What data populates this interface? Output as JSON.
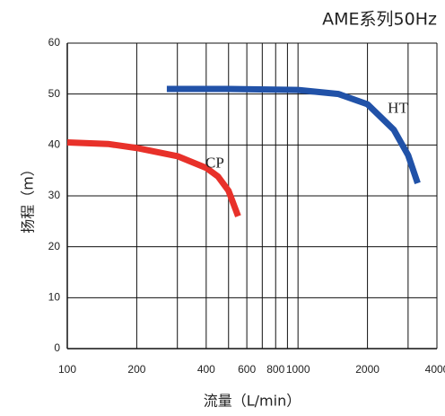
{
  "chart_data": {
    "type": "line",
    "title": "AME系列50Hz",
    "x_label": "流量（L/min）",
    "y_label": "扬程（m）",
    "log_x": true,
    "grid": true,
    "xlim": [
      100,
      4000
    ],
    "ylim": [
      0,
      60
    ],
    "xticks": [
      100,
      200,
      400,
      600,
      800,
      1000,
      2000,
      4000
    ],
    "x_minor_grid": [
      300,
      500,
      700,
      900,
      3000
    ],
    "yticks": [
      0,
      10,
      20,
      30,
      40,
      50,
      60
    ],
    "series": [
      {
        "name": "CP",
        "color": "#e8312a",
        "x": [
          100,
          150,
          200,
          300,
          400,
          450,
          500,
          550
        ],
        "values": [
          40.5,
          40.2,
          39.4,
          37.8,
          35.5,
          33.8,
          31,
          26
        ]
      },
      {
        "name": "HT",
        "color": "#2152a8",
        "x": [
          270,
          500,
          1000,
          1500,
          2000,
          2600,
          3000,
          3300
        ],
        "values": [
          51,
          51,
          50.8,
          50,
          48,
          43,
          38,
          32.5
        ]
      }
    ]
  }
}
